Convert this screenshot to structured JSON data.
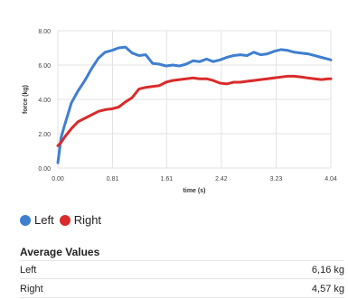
{
  "chart_data": {
    "type": "line",
    "xlabel": "time (s)",
    "ylabel": "force (kg)",
    "xlim": [
      0,
      4.04
    ],
    "ylim": [
      0,
      8
    ],
    "x_ticks": [
      "0.00",
      "0.81",
      "1.61",
      "2.42",
      "3.23",
      "4.04"
    ],
    "y_ticks": [
      "0.00",
      "2.00",
      "4.00",
      "6.00",
      "8.00"
    ],
    "grid": true,
    "series": [
      {
        "name": "Left",
        "color": "#3f7fd0",
        "x": [
          0.0,
          0.05,
          0.1,
          0.2,
          0.3,
          0.4,
          0.5,
          0.6,
          0.7,
          0.8,
          0.9,
          1.0,
          1.1,
          1.2,
          1.3,
          1.4,
          1.5,
          1.6,
          1.7,
          1.8,
          1.9,
          2.0,
          2.1,
          2.2,
          2.3,
          2.4,
          2.5,
          2.6,
          2.7,
          2.8,
          2.9,
          3.0,
          3.1,
          3.2,
          3.3,
          3.4,
          3.5,
          3.6,
          3.7,
          3.8,
          3.9,
          4.0,
          4.04
        ],
        "y": [
          0.3,
          1.8,
          2.5,
          3.8,
          4.5,
          5.1,
          5.8,
          6.4,
          6.75,
          6.85,
          7.0,
          7.05,
          6.7,
          6.55,
          6.6,
          6.1,
          6.05,
          5.95,
          6.0,
          5.95,
          6.05,
          6.25,
          6.2,
          6.35,
          6.2,
          6.3,
          6.45,
          6.55,
          6.6,
          6.55,
          6.75,
          6.6,
          6.65,
          6.8,
          6.9,
          6.85,
          6.75,
          6.7,
          6.65,
          6.55,
          6.45,
          6.35,
          6.3
        ]
      },
      {
        "name": "Right",
        "color": "#d92b2b",
        "x": [
          0.0,
          0.05,
          0.1,
          0.2,
          0.3,
          0.4,
          0.5,
          0.6,
          0.7,
          0.8,
          0.9,
          1.0,
          1.1,
          1.2,
          1.3,
          1.4,
          1.5,
          1.6,
          1.7,
          1.8,
          1.9,
          2.0,
          2.1,
          2.2,
          2.3,
          2.4,
          2.5,
          2.6,
          2.7,
          2.8,
          2.9,
          3.0,
          3.1,
          3.2,
          3.3,
          3.4,
          3.5,
          3.6,
          3.7,
          3.8,
          3.9,
          4.0,
          4.04
        ],
        "y": [
          1.3,
          1.5,
          1.8,
          2.3,
          2.7,
          2.9,
          3.1,
          3.3,
          3.4,
          3.45,
          3.55,
          3.85,
          4.1,
          4.6,
          4.7,
          4.75,
          4.8,
          5.0,
          5.1,
          5.15,
          5.2,
          5.25,
          5.2,
          5.2,
          5.1,
          4.95,
          4.9,
          5.0,
          5.0,
          5.05,
          5.1,
          5.15,
          5.2,
          5.25,
          5.3,
          5.35,
          5.35,
          5.3,
          5.25,
          5.2,
          5.15,
          5.2,
          5.2
        ]
      }
    ]
  },
  "legend": {
    "left_label": "Left",
    "right_label": "Right"
  },
  "averages": {
    "title": "Average Values",
    "rows": [
      {
        "label": "Left",
        "value": "6,16 kg"
      },
      {
        "label": "Right",
        "value": "4,57 kg"
      }
    ]
  }
}
